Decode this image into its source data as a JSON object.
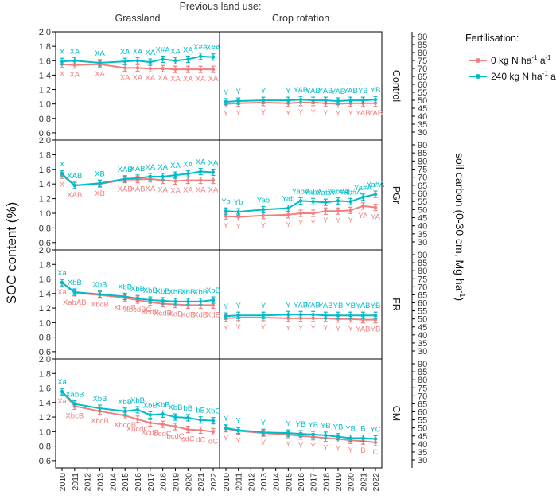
{
  "chart_data": {
    "type": "line",
    "header": "Previous land use:",
    "columns": [
      "Grassland",
      "Crop rotation"
    ],
    "rows": [
      "Control",
      "PGr",
      "FR",
      "CM"
    ],
    "ylabel": "SOC content (%)",
    "y2label": "soil carbon (0-30 cm, Mg ha",
    "y2label_sup": "-1",
    "y2label_end": ")",
    "ylim": [
      0.5,
      2.0
    ],
    "yticks": [
      "0.6",
      "0.8",
      "1.0",
      "1.2",
      "1.4",
      "1.6",
      "1.8",
      "2.0"
    ],
    "y2ticks": [
      "30",
      "35",
      "40",
      "45",
      "50",
      "55",
      "60",
      "65",
      "70",
      "75",
      "80",
      "85",
      "90"
    ],
    "years": [
      2010,
      2011,
      2013,
      2015,
      2016,
      2017,
      2018,
      2019,
      2020,
      2021,
      2022
    ],
    "xticks": [
      "2010",
      "2011",
      "2012",
      "2013",
      "2014",
      "2015",
      "2016",
      "2017",
      "2018",
      "2019",
      "2020",
      "2021",
      "2022"
    ],
    "legend": {
      "title": "Fertilisation:",
      "entries": [
        {
          "text": "0 kg N ha",
          "sup1": "-1",
          "mid": " a",
          "sup2": "-1",
          "color": "#f08080"
        },
        {
          "text": "240 kg N ha",
          "sup1": "-1",
          "mid": " a",
          "sup2": "-1",
          "color": "#00bcc8"
        }
      ]
    },
    "colors": {
      "n0": "#f08080",
      "n240": "#00bcc8",
      "axis": "#000000",
      "text": "#333333"
    },
    "panels": [
      {
        "row": "Control",
        "col": "Grassland",
        "n0": [
          1.55,
          1.54,
          1.55,
          1.5,
          1.5,
          1.49,
          1.49,
          1.48,
          1.48,
          1.48,
          1.48
        ],
        "n240": [
          1.59,
          1.6,
          1.57,
          1.59,
          1.6,
          1.58,
          1.62,
          1.6,
          1.62,
          1.66,
          1.65
        ],
        "lab0": [
          "X",
          "XA",
          "XA",
          "XA",
          "XA",
          "XA",
          "XA",
          "XA",
          "XA",
          "XA",
          "XA"
        ],
        "lab240": [
          "X",
          "XA",
          "XA",
          "XA",
          "XA",
          "XA",
          "X#A",
          "XA",
          "XA",
          "X#A",
          "X#A"
        ]
      },
      {
        "row": "Control",
        "col": "Crop rotation",
        "n0": [
          1.0,
          1.01,
          1.02,
          1.01,
          1.02,
          1.02,
          1.01,
          1.0,
          1.01,
          1.01,
          1.01
        ],
        "n240": [
          1.03,
          1.04,
          1.05,
          1.05,
          1.06,
          1.05,
          1.05,
          1.04,
          1.05,
          1.05,
          1.06
        ],
        "lab0": [
          "Y",
          "Y",
          "Y",
          "Y",
          "Y",
          "Y",
          "Y",
          "Y",
          "Y",
          "YAB",
          "YAB"
        ],
        "lab240": [
          "Y",
          "Y",
          "Y",
          "Y",
          "YAB",
          "YAB",
          "YAB",
          "YAB",
          "YAB",
          "YB",
          "YB"
        ]
      },
      {
        "row": "PGr",
        "col": "Grassland",
        "n0": [
          1.52,
          1.38,
          1.4,
          1.46,
          1.46,
          1.47,
          1.45,
          1.44,
          1.45,
          1.45,
          1.45
        ],
        "n240": [
          1.54,
          1.38,
          1.41,
          1.47,
          1.48,
          1.5,
          1.5,
          1.52,
          1.54,
          1.57,
          1.56
        ],
        "lab0": [
          "X",
          "XAB",
          "XB",
          "XAB",
          "XAB",
          "XA",
          "XA",
          "XA",
          "XA",
          "XA",
          "XA"
        ],
        "lab240": [
          "X",
          "XAB",
          "XB",
          "XAB",
          "XAB",
          "XA",
          "XA",
          "XA",
          "XA",
          "XA",
          "XA"
        ]
      },
      {
        "row": "PGr",
        "col": "Crop rotation",
        "n0": [
          0.96,
          0.95,
          0.97,
          0.98,
          1.0,
          1.0,
          1.03,
          1.03,
          1.04,
          1.1,
          1.08
        ],
        "n240": [
          1.03,
          1.02,
          1.05,
          1.07,
          1.17,
          1.16,
          1.15,
          1.17,
          1.16,
          1.22,
          1.26
        ],
        "lab0": [
          "Y",
          "Y",
          "Y",
          "Y",
          "Y",
          "Y",
          "Y",
          "Y",
          "Y",
          "YA",
          "YA"
        ],
        "lab240": [
          "Yb",
          "Yb",
          "Yab",
          "Yab",
          "YabA",
          "YabA",
          "YabA",
          "Yab#A",
          "Yab#A",
          "Ya#A",
          "Ya#A"
        ]
      },
      {
        "row": "FR",
        "col": "Grassland",
        "n0": [
          1.55,
          1.41,
          1.38,
          1.34,
          1.31,
          1.28,
          1.26,
          1.25,
          1.24,
          1.24,
          1.24
        ],
        "n240": [
          1.55,
          1.42,
          1.39,
          1.36,
          1.33,
          1.31,
          1.3,
          1.29,
          1.29,
          1.29,
          1.31
        ],
        "lab0": [
          "Xa",
          "XabAB",
          "XbcB",
          "XbcdB",
          "XbcdBC",
          "XcdB",
          "XcdB",
          "XdB",
          "XdB",
          "XdB",
          "XdB"
        ],
        "lab240": [
          "Xa",
          "XbB",
          "XbB",
          "XbB",
          "XbB",
          "XbB",
          "XbB",
          "XbB",
          "XbB",
          "XbB",
          "XbB"
        ]
      },
      {
        "row": "FR",
        "col": "Crop rotation",
        "n0": [
          1.06,
          1.07,
          1.07,
          1.06,
          1.06,
          1.06,
          1.06,
          1.05,
          1.05,
          1.04,
          1.04
        ],
        "n240": [
          1.09,
          1.1,
          1.1,
          1.11,
          1.11,
          1.11,
          1.1,
          1.1,
          1.1,
          1.1,
          1.1
        ],
        "lab0": [
          "Y",
          "Y",
          "Y",
          "Y",
          "Y",
          "Y",
          "Y",
          "Y",
          "Y",
          "YAB",
          "YB"
        ],
        "lab240": [
          "Y",
          "Y",
          "Y",
          "Y",
          "YAB",
          "YAB",
          "YAB",
          "YB",
          "YB",
          "YAB",
          "YB"
        ]
      },
      {
        "row": "CM",
        "col": "Grassland",
        "n0": [
          1.55,
          1.35,
          1.28,
          1.22,
          1.17,
          1.12,
          1.1,
          1.07,
          1.03,
          1.02,
          1.0
        ],
        "n240": [
          1.55,
          1.38,
          1.32,
          1.28,
          1.3,
          1.23,
          1.24,
          1.2,
          1.19,
          1.16,
          1.15
        ],
        "lab0": [
          "Xa",
          "XbcB",
          "XbcB",
          "XbcdB",
          "XbcdC",
          "XcdB",
          "bcdC",
          "bcdC",
          "cdC",
          "dC",
          "dC"
        ],
        "lab240": [
          "Xa",
          "XabB",
          "XbB",
          "XbB",
          "XbB",
          "XbB",
          "XbB",
          "XbB",
          "bB",
          "bB",
          "XbC"
        ]
      },
      {
        "row": "CM",
        "col": "Crop rotation",
        "n0": [
          1.04,
          1.01,
          0.98,
          0.96,
          0.94,
          0.93,
          0.91,
          0.9,
          0.88,
          0.87,
          0.85
        ],
        "n240": [
          1.05,
          1.02,
          0.99,
          0.98,
          0.97,
          0.96,
          0.95,
          0.93,
          0.91,
          0.91,
          0.9
        ],
        "lab0": [
          "Y",
          "Y",
          "Y",
          "Y",
          "Y",
          "Y",
          "Y",
          "Y",
          "Y",
          "B",
          "C"
        ],
        "lab240": [
          "Y",
          "Y",
          "Y",
          "Y",
          "YB",
          "YB",
          "YB",
          "YB",
          "YB",
          "B",
          "YC"
        ]
      }
    ]
  }
}
